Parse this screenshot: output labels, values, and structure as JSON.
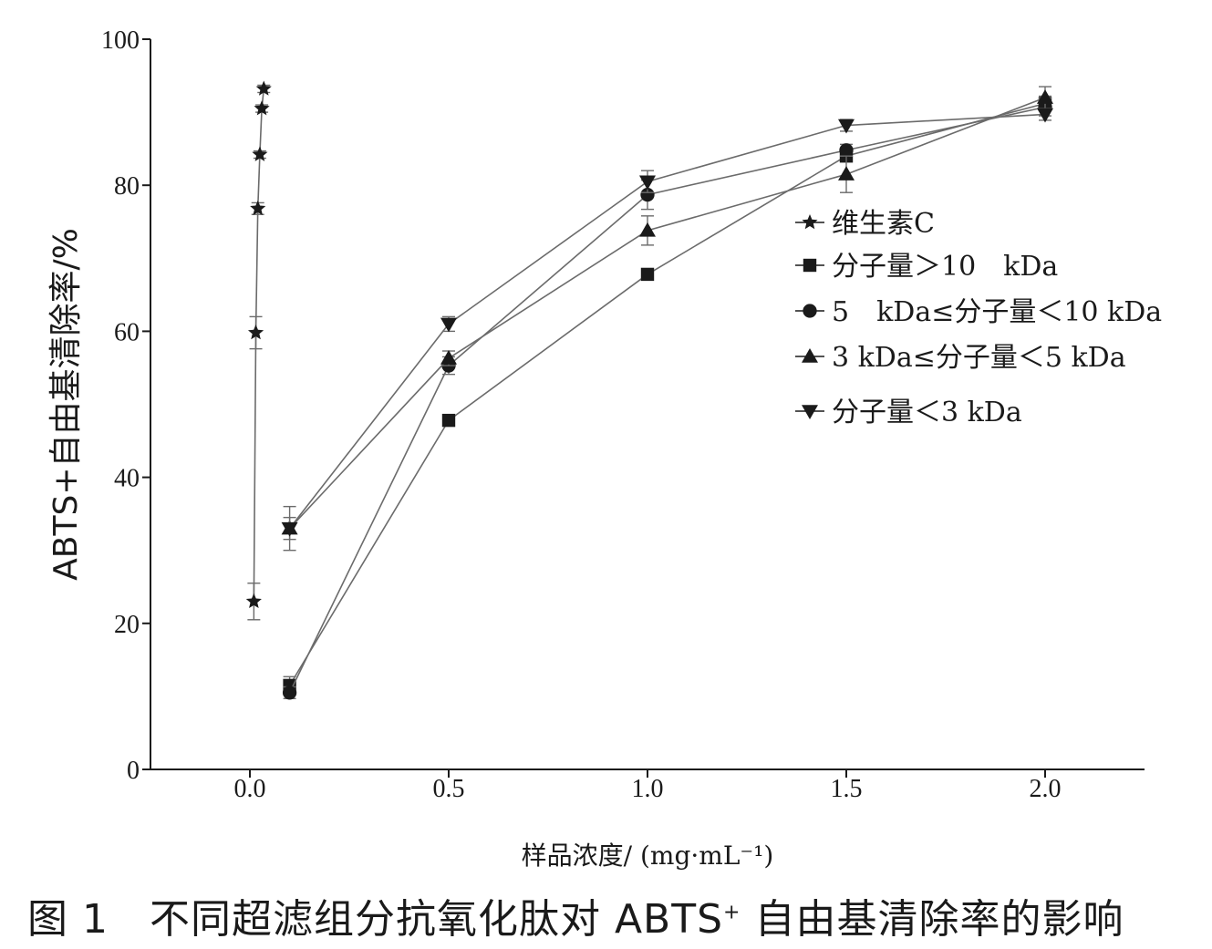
{
  "caption": {
    "prefix": "图 1",
    "text_before": "不同超滤组分抗氧化肽对 ABTS",
    "superscript": "+",
    "text_after": " 自由基清除率的影响"
  },
  "chart_data": {
    "type": "line",
    "xlabel": "样品浓度/ (mg·mL⁻¹)",
    "ylabel": "ABTS+自由基清除率/%",
    "xlim": [
      -0.25,
      2.25
    ],
    "ylim": [
      0,
      100
    ],
    "x_ticks": [
      "0.0",
      "0.5",
      "1.0",
      "1.5",
      "2.0"
    ],
    "y_ticks": [
      "0",
      "20",
      "40",
      "60",
      "80",
      "100"
    ],
    "legend_position": "center-right",
    "grid": false,
    "series": [
      {
        "name": "维生素C",
        "marker": "star",
        "x": [
          0.01,
          0.015,
          0.02,
          0.025,
          0.03,
          0.035
        ],
        "y": [
          23.0,
          59.8,
          76.8,
          84.2,
          90.5,
          93.2
        ],
        "err": [
          2.5,
          2.2,
          0.8,
          0.5,
          0.5,
          0.5
        ]
      },
      {
        "name": "分子量＞10　kDa",
        "marker": "square",
        "x": [
          0.1,
          0.5,
          1.0,
          1.5,
          2.0
        ],
        "y": [
          11.5,
          47.8,
          67.8,
          84.0,
          91.2
        ],
        "err": [
          1.2,
          0.5,
          0.5,
          0.8,
          1.0
        ]
      },
      {
        "name": "5　kDa≤分子量＜10 kDa",
        "marker": "circle",
        "x": [
          0.1,
          0.5,
          1.0,
          1.5,
          2.0
        ],
        "y": [
          10.5,
          55.3,
          78.7,
          84.8,
          90.7
        ],
        "err": [
          0.8,
          1.2,
          2.0,
          0.8,
          1.2
        ]
      },
      {
        "name": "3 kDa≤分子量＜5 kDa",
        "marker": "triangle-up",
        "x": [
          0.1,
          0.5,
          1.0,
          1.5,
          2.0
        ],
        "y": [
          33.0,
          56.3,
          73.8,
          81.5,
          92.0
        ],
        "err": [
          3.0,
          1.0,
          2.0,
          2.5,
          1.5
        ]
      },
      {
        "name": "分子量＜3 kDa",
        "marker": "triangle-down",
        "x": [
          0.1,
          0.5,
          1.0,
          1.5,
          2.0
        ],
        "y": [
          33.0,
          61.0,
          80.5,
          88.2,
          89.7
        ],
        "err": [
          1.5,
          1.0,
          1.5,
          0.8,
          0.8
        ]
      }
    ]
  }
}
